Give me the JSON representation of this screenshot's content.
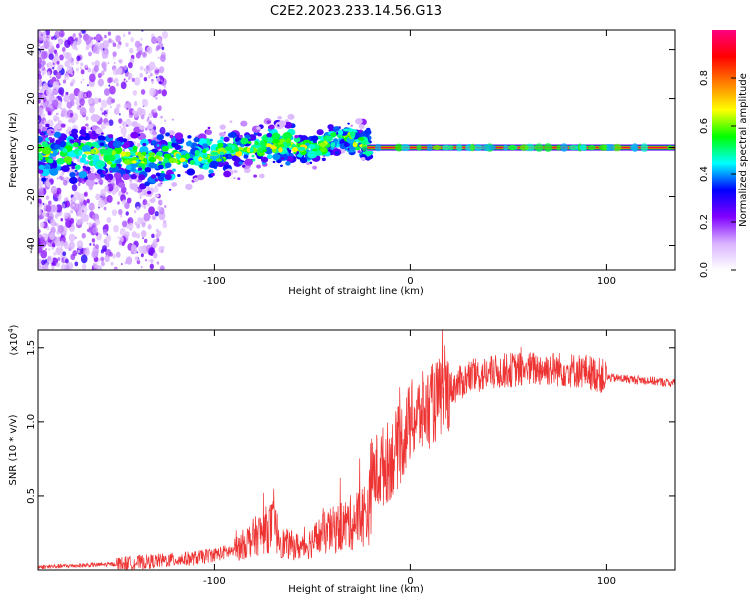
{
  "title": "C2E2.2023.233.14.56.G13",
  "chart_data": [
    {
      "type": "heatmap",
      "xlabel": "Height of straight line (km)",
      "ylabel": "Frequency (Hz)",
      "xlim": [
        -190,
        135
      ],
      "ylim": [
        -50,
        48
      ],
      "x_ticks": [
        -100,
        0,
        100
      ],
      "x_tick_labels": [
        "-100",
        "0",
        "100"
      ],
      "y_ticks": [
        -40,
        -20,
        0,
        20,
        40
      ],
      "y_tick_labels": [
        "-40",
        "-20",
        "0",
        "20",
        "40"
      ],
      "colorbar": {
        "label": "Normalized spectral amplitude",
        "range": [
          0,
          1
        ],
        "ticks": [
          0,
          0.2,
          0.4,
          0.6,
          0.8
        ],
        "tick_labels": [
          "0.0",
          "0.2",
          "0.4",
          "0.6",
          "0.8"
        ],
        "colors": [
          "#ffffff",
          "#d9b3ff",
          "#8000ff",
          "#0000ff",
          "#00ffff",
          "#00ff00",
          "#ffff00",
          "#ff8000",
          "#ff0000",
          "#ff0080"
        ]
      },
      "ridge": {
        "x": [
          -190,
          -150,
          -130,
          -100,
          -80,
          -60,
          -50,
          -40,
          -33,
          -25,
          -20,
          -10,
          0,
          20,
          50,
          80,
          100,
          135
        ],
        "y": [
          -2,
          -4,
          -5,
          -3,
          0,
          1,
          -1,
          3,
          5,
          2,
          1,
          0,
          0,
          0,
          0,
          0,
          0,
          0
        ]
      }
    },
    {
      "type": "line",
      "xlabel": "Height of straight line (km)",
      "ylabel": "SNR (10 * v/v)",
      "y_multiplier_label": "(x10",
      "y_multiplier_exp": "4",
      "y_multiplier_close": ")",
      "xlim": [
        -190,
        135
      ],
      "ylim": [
        0,
        1.62
      ],
      "x_ticks": [
        -100,
        0,
        100
      ],
      "x_tick_labels": [
        "-100",
        "0",
        "100"
      ],
      "y_ticks": [
        0.5,
        1.0,
        1.5
      ],
      "y_tick_labels": [
        "0.5",
        "1.0",
        "1.5"
      ],
      "color": "#ee3333",
      "envelope": {
        "x": [
          -190,
          -150,
          -130,
          -110,
          -90,
          -80,
          -70,
          -65,
          -55,
          -45,
          -30,
          -21,
          -20,
          -10,
          -5,
          0,
          5,
          10,
          20,
          30,
          50,
          70,
          90,
          100,
          110,
          120,
          135
        ],
        "y": [
          0.02,
          0.04,
          0.06,
          0.08,
          0.13,
          0.22,
          0.3,
          0.18,
          0.15,
          0.24,
          0.32,
          0.4,
          0.62,
          0.75,
          0.85,
          1.0,
          1.05,
          1.1,
          1.22,
          1.3,
          1.35,
          1.36,
          1.34,
          1.3,
          1.29,
          1.28,
          1.26
        ]
      }
    }
  ]
}
